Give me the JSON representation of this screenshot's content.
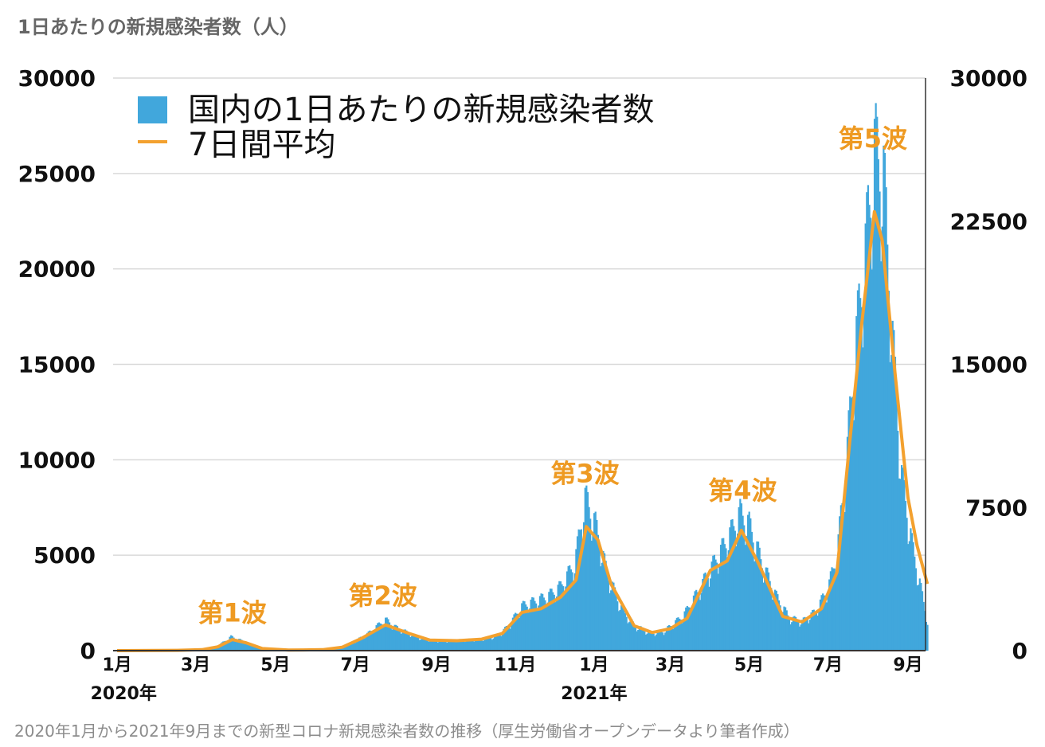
{
  "colors": {
    "bar": "#41a7dc",
    "line": "#f3a12f",
    "wave_label": "#ee9a22",
    "grid": "#d9d9d9",
    "axis": "#333333",
    "text": "#111111",
    "title_text": "#666666",
    "caption_text": "#8c8c8c"
  },
  "caption": "2020年1月から2021年9月までの新型コロナ新規感染者数の推移（厚生労働省オープンデータより筆者作成）",
  "chart_data": {
    "type": "bar",
    "title": "1日あたりの新規感染者数（人）",
    "legend": {
      "placement": "top-left",
      "bar_label": "国内の1日あたりの新規感染者数",
      "line_label": "7日間平均"
    },
    "y_left": {
      "min": 0,
      "max": 30000,
      "ticks": [
        "0",
        "5000",
        "10000",
        "15000",
        "20000",
        "25000",
        "30000"
      ]
    },
    "y_right": {
      "min": 0,
      "max": 30000,
      "ticks": [
        "0",
        "7500",
        "15000",
        "22500",
        "30000"
      ]
    },
    "grid": true,
    "x_ticks": [
      {
        "label": "1月",
        "date": "2020-01-15"
      },
      {
        "label": "3月",
        "date": "2020-03-15"
      },
      {
        "label": "5月",
        "date": "2020-05-15"
      },
      {
        "label": "7月",
        "date": "2020-07-15"
      },
      {
        "label": "9月",
        "date": "2020-09-15"
      },
      {
        "label": "11月",
        "date": "2020-11-15"
      },
      {
        "label": "1月",
        "date": "2021-01-15"
      },
      {
        "label": "3月",
        "date": "2021-03-15"
      },
      {
        "label": "5月",
        "date": "2021-05-15"
      },
      {
        "label": "7月",
        "date": "2021-07-15"
      },
      {
        "label": "9月",
        "date": "2021-09-15"
      }
    ],
    "year_labels": [
      {
        "label": "2020年",
        "date": "2020-01-20"
      },
      {
        "label": "2021年",
        "date": "2021-01-15"
      }
    ],
    "x_range": [
      "2020-01-15",
      "2021-09-30"
    ],
    "waves": [
      {
        "label": "第1波",
        "date": "2020-04-12",
        "value": 600
      },
      {
        "label": "第2波",
        "date": "2020-08-05",
        "value": 1500
      },
      {
        "label": "第3波",
        "date": "2021-01-08",
        "value": 7900
      },
      {
        "label": "第4波",
        "date": "2021-05-10",
        "value": 7000
      },
      {
        "label": "第5波",
        "date": "2021-08-20",
        "value": 25800
      }
    ],
    "series": [
      {
        "type": "bar",
        "label_ref": "legend.bar_label",
        "daily_points": [
          [
            "2020-01-15",
            0
          ],
          [
            "2020-03-01",
            20
          ],
          [
            "2020-03-20",
            60
          ],
          [
            "2020-04-01",
            250
          ],
          [
            "2020-04-11",
            720
          ],
          [
            "2020-04-18",
            550
          ],
          [
            "2020-04-25",
            300
          ],
          [
            "2020-05-05",
            120
          ],
          [
            "2020-05-20",
            25
          ],
          [
            "2020-06-10",
            40
          ],
          [
            "2020-06-25",
            90
          ],
          [
            "2020-07-05",
            200
          ],
          [
            "2020-07-15",
            500
          ],
          [
            "2020-07-25",
            900
          ],
          [
            "2020-08-03",
            1400
          ],
          [
            "2020-08-07",
            1600
          ],
          [
            "2020-08-15",
            1200
          ],
          [
            "2020-08-25",
            900
          ],
          [
            "2020-09-05",
            600
          ],
          [
            "2020-09-20",
            500
          ],
          [
            "2020-10-05",
            550
          ],
          [
            "2020-10-20",
            600
          ],
          [
            "2020-11-01",
            750
          ],
          [
            "2020-11-10",
            1300
          ],
          [
            "2020-11-20",
            2300
          ],
          [
            "2020-11-28",
            2500
          ],
          [
            "2020-12-10",
            2800
          ],
          [
            "2020-12-20",
            3300
          ],
          [
            "2020-12-31",
            4500
          ],
          [
            "2021-01-08",
            7900
          ],
          [
            "2021-01-16",
            6500
          ],
          [
            "2021-01-25",
            4000
          ],
          [
            "2021-02-05",
            2200
          ],
          [
            "2021-02-15",
            1300
          ],
          [
            "2021-02-28",
            900
          ],
          [
            "2021-03-10",
            1000
          ],
          [
            "2021-03-25",
            1800
          ],
          [
            "2021-04-05",
            3000
          ],
          [
            "2021-04-20",
            4800
          ],
          [
            "2021-04-28",
            5700
          ],
          [
            "2021-05-08",
            7100
          ],
          [
            "2021-05-15",
            6500
          ],
          [
            "2021-05-25",
            4500
          ],
          [
            "2021-06-05",
            2800
          ],
          [
            "2021-06-15",
            1700
          ],
          [
            "2021-06-25",
            1500
          ],
          [
            "2021-07-05",
            2000
          ],
          [
            "2021-07-15",
            3200
          ],
          [
            "2021-07-22",
            5000
          ],
          [
            "2021-07-29",
            9500
          ],
          [
            "2021-08-05",
            15600
          ],
          [
            "2021-08-12",
            20000
          ],
          [
            "2021-08-20",
            25800
          ],
          [
            "2021-08-27",
            24500
          ],
          [
            "2021-09-03",
            16000
          ],
          [
            "2021-09-10",
            9000
          ],
          [
            "2021-09-18",
            5500
          ],
          [
            "2021-09-30",
            1500
          ]
        ]
      },
      {
        "type": "line",
        "label_ref": "legend.line_label",
        "points": [
          [
            "2020-01-15",
            0
          ],
          [
            "2020-03-01",
            15
          ],
          [
            "2020-03-20",
            50
          ],
          [
            "2020-04-01",
            200
          ],
          [
            "2020-04-12",
            580
          ],
          [
            "2020-04-22",
            420
          ],
          [
            "2020-05-05",
            110
          ],
          [
            "2020-05-25",
            30
          ],
          [
            "2020-06-20",
            50
          ],
          [
            "2020-07-05",
            180
          ],
          [
            "2020-07-20",
            650
          ],
          [
            "2020-08-07",
            1350
          ],
          [
            "2020-08-25",
            900
          ],
          [
            "2020-09-10",
            550
          ],
          [
            "2020-10-01",
            520
          ],
          [
            "2020-10-20",
            600
          ],
          [
            "2020-11-05",
            900
          ],
          [
            "2020-11-20",
            2000
          ],
          [
            "2020-12-05",
            2200
          ],
          [
            "2020-12-20",
            2800
          ],
          [
            "2021-01-01",
            3700
          ],
          [
            "2021-01-09",
            6500
          ],
          [
            "2021-01-18",
            5800
          ],
          [
            "2021-01-28",
            3500
          ],
          [
            "2021-02-15",
            1300
          ],
          [
            "2021-03-01",
            950
          ],
          [
            "2021-03-15",
            1150
          ],
          [
            "2021-03-28",
            1700
          ],
          [
            "2021-04-15",
            4200
          ],
          [
            "2021-04-28",
            4700
          ],
          [
            "2021-05-09",
            6300
          ],
          [
            "2021-05-22",
            4600
          ],
          [
            "2021-06-10",
            1800
          ],
          [
            "2021-06-25",
            1500
          ],
          [
            "2021-07-10",
            2200
          ],
          [
            "2021-07-22",
            4100
          ],
          [
            "2021-08-01",
            11000
          ],
          [
            "2021-08-10",
            17000
          ],
          [
            "2021-08-20",
            23000
          ],
          [
            "2021-08-26",
            21500
          ],
          [
            "2021-09-05",
            14500
          ],
          [
            "2021-09-15",
            8000
          ],
          [
            "2021-09-22",
            5500
          ],
          [
            "2021-09-30",
            3500
          ]
        ]
      }
    ]
  }
}
